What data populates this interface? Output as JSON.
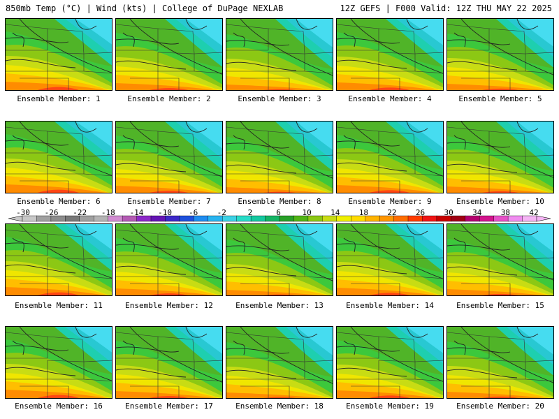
{
  "header": {
    "left": "850mb Temp (°C) | Wind (kts) | College of DuPage NEXLAB",
    "right": "12Z GEFS | F000 Valid: 12Z THU MAY 22 2025"
  },
  "members": [
    "Ensemble Member: 1",
    "Ensemble Member: 2",
    "Ensemble Member: 3",
    "Ensemble Member: 4",
    "Ensemble Member: 5",
    "Ensemble Member: 6",
    "Ensemble Member: 7",
    "Ensemble Member: 8",
    "Ensemble Member: 9",
    "Ensemble Member: 10",
    "Ensemble Member: 11",
    "Ensemble Member: 12",
    "Ensemble Member: 13",
    "Ensemble Member: 14",
    "Ensemble Member: 15",
    "Ensemble Member: 16",
    "Ensemble Member: 17",
    "Ensemble Member: 18",
    "Ensemble Member: 19",
    "Ensemble Member: 20"
  ],
  "colorbar": {
    "labels": [
      "-30",
      "-26",
      "-22",
      "-18",
      "-14",
      "-10",
      "-6",
      "-2",
      "2",
      "6",
      "10",
      "14",
      "18",
      "22",
      "26",
      "30",
      "34",
      "38",
      "42"
    ],
    "colors": [
      "#c8c8c8",
      "#a0a0a0",
      "#8c8c8c",
      "#787878",
      "#a0a0a0",
      "#b4b4b4",
      "#d28cd2",
      "#b45ab4",
      "#8c28c8",
      "#6414b4",
      "#3c28c8",
      "#1e50dc",
      "#1e8cf0",
      "#28b4f0",
      "#3cd2e6",
      "#28dcc8",
      "#14c8a0",
      "#14b464",
      "#28a028",
      "#50b414",
      "#8cc814",
      "#c8dc14",
      "#f0f000",
      "#ffdc00",
      "#ffb400",
      "#ff9600",
      "#ff6e00",
      "#ff3c00",
      "#f01414",
      "#c80000",
      "#a00014",
      "#b4006e",
      "#d2148c",
      "#e650c8",
      "#f08cf0",
      "#f5b4f5"
    ]
  }
}
